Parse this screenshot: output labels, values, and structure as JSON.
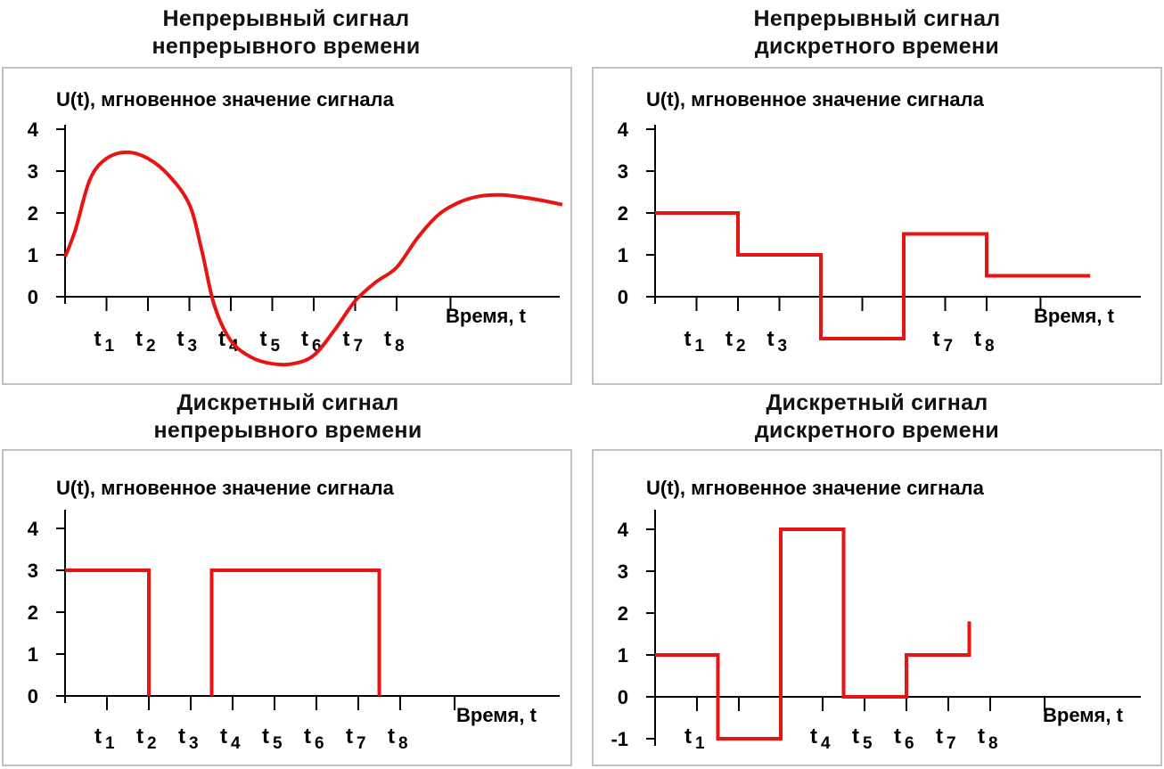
{
  "panels": [
    {
      "title_line1": "Непрерывный сигнал",
      "title_line2": "непрерывного времени",
      "y_label": "U(t), мгновенное значение сигнала",
      "x_label": "Время, t",
      "line_color": "#e81414",
      "chart_data": {
        "type": "line",
        "yticks": [
          "0",
          "1",
          "2",
          "3",
          "4"
        ],
        "xticks": [
          {
            "t": "t",
            "sub": "1"
          },
          {
            "t": "t",
            "sub": "2"
          },
          {
            "t": "t",
            "sub": "3"
          },
          {
            "t": "t",
            "sub": "4"
          },
          {
            "t": "t",
            "sub": "5"
          },
          {
            "t": "t",
            "sub": "6"
          },
          {
            "t": "t",
            "sub": "7"
          },
          {
            "t": "t",
            "sub": "8"
          }
        ],
        "points": [
          [
            0,
            0.95
          ],
          [
            0.25,
            1.6
          ],
          [
            0.6,
            2.8
          ],
          [
            1,
            3.3
          ],
          [
            1.5,
            3.45
          ],
          [
            2,
            3.3
          ],
          [
            2.5,
            2.9
          ],
          [
            3,
            2.2
          ],
          [
            3.3,
            1.1
          ],
          [
            3.6,
            -0.2
          ],
          [
            4,
            -1.05
          ],
          [
            4.5,
            -1.45
          ],
          [
            5,
            -1.6
          ],
          [
            5.5,
            -1.6
          ],
          [
            6,
            -1.4
          ],
          [
            6.5,
            -0.8
          ],
          [
            7,
            -0.1
          ],
          [
            7.5,
            0.35
          ],
          [
            8,
            0.7
          ],
          [
            8.5,
            1.4
          ],
          [
            9,
            1.95
          ],
          [
            9.5,
            2.25
          ],
          [
            10,
            2.4
          ],
          [
            10.5,
            2.43
          ],
          [
            11,
            2.38
          ],
          [
            11.5,
            2.3
          ],
          [
            12,
            2.2
          ]
        ]
      }
    },
    {
      "title_line1": "Непрерывный сигнал",
      "title_line2": "дискретного времени",
      "y_label": "U(t), мгновенное значение сигнала",
      "x_label": "Время, t",
      "line_color": "#e81414",
      "chart_data": {
        "type": "step",
        "yticks": [
          "0",
          "1",
          "2",
          "3",
          "4"
        ],
        "xticks": [
          {
            "t": "t",
            "sub": "1"
          },
          {
            "t": "t",
            "sub": "2"
          },
          {
            "t": "t",
            "sub": "3"
          },
          {
            "t": "",
            "sub": ""
          },
          {
            "t": "",
            "sub": ""
          },
          {
            "t": "",
            "sub": ""
          },
          {
            "t": "t",
            "sub": "7"
          },
          {
            "t": "t",
            "sub": "8"
          }
        ],
        "points": [
          [
            0,
            2
          ],
          [
            2,
            2
          ],
          [
            2,
            1
          ],
          [
            4,
            1
          ],
          [
            4,
            -1
          ],
          [
            6,
            -1
          ],
          [
            6,
            1.5
          ],
          [
            8,
            1.5
          ],
          [
            8,
            0.5
          ],
          [
            10.5,
            0.5
          ]
        ]
      }
    },
    {
      "title_line1": "Дискретный сигнал",
      "title_line2": "непрерывного времени",
      "y_label": "U(t), мгновенное значение сигнала",
      "x_label": "Время, t",
      "line_color": "#e81414",
      "chart_data": {
        "type": "step",
        "yticks": [
          "0",
          "1",
          "2",
          "3",
          "4"
        ],
        "xticks": [
          {
            "t": "t",
            "sub": "1"
          },
          {
            "t": "t",
            "sub": "2"
          },
          {
            "t": "t",
            "sub": "3"
          },
          {
            "t": "t",
            "sub": "4"
          },
          {
            "t": "t",
            "sub": "5"
          },
          {
            "t": "t",
            "sub": "6"
          },
          {
            "t": "t",
            "sub": "7"
          },
          {
            "t": "t",
            "sub": "8"
          }
        ],
        "segments": [
          [
            [
              0,
              3
            ],
            [
              2,
              3
            ],
            [
              2,
              0
            ]
          ],
          [
            [
              3.5,
              0
            ],
            [
              3.5,
              3
            ],
            [
              7.5,
              3
            ],
            [
              7.5,
              0
            ]
          ]
        ]
      }
    },
    {
      "title_line1": "Дискретный сигнал",
      "title_line2": "дискретного времени",
      "y_label": "U(t), мгновенное значение сигнала",
      "x_label": "Время, t",
      "line_color": "#e81414",
      "chart_data": {
        "type": "step",
        "yticks": [
          "-1",
          "0",
          "1",
          "2",
          "3",
          "4"
        ],
        "xticks": [
          {
            "t": "t",
            "sub": "1"
          },
          {
            "t": "",
            "sub": ""
          },
          {
            "t": "",
            "sub": ""
          },
          {
            "t": "t",
            "sub": "4"
          },
          {
            "t": "t",
            "sub": "5"
          },
          {
            "t": "t",
            "sub": "6"
          },
          {
            "t": "t",
            "sub": "7"
          },
          {
            "t": "t",
            "sub": "8"
          }
        ],
        "points": [
          [
            0,
            1
          ],
          [
            1.5,
            1
          ],
          [
            1.5,
            -1
          ],
          [
            3,
            -1
          ],
          [
            3,
            4
          ],
          [
            4.5,
            4
          ],
          [
            4.5,
            0
          ],
          [
            6,
            0
          ],
          [
            6,
            1
          ],
          [
            7.5,
            1
          ],
          [
            7.5,
            1.8
          ]
        ]
      }
    }
  ]
}
